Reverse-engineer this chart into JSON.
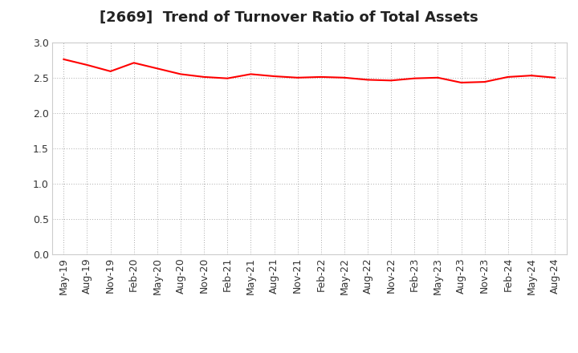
{
  "title": "[2669]  Trend of Turnover Ratio of Total Assets",
  "x_labels": [
    "May-19",
    "Aug-19",
    "Nov-19",
    "Feb-20",
    "May-20",
    "Aug-20",
    "Nov-20",
    "Feb-21",
    "May-21",
    "Aug-21",
    "Nov-21",
    "Feb-22",
    "May-22",
    "Aug-22",
    "Nov-22",
    "Feb-23",
    "May-23",
    "Aug-23",
    "Nov-23",
    "Feb-24",
    "May-24",
    "Aug-24"
  ],
  "values": [
    2.76,
    2.68,
    2.59,
    2.71,
    2.63,
    2.55,
    2.51,
    2.49,
    2.55,
    2.52,
    2.5,
    2.51,
    2.5,
    2.47,
    2.46,
    2.49,
    2.5,
    2.43,
    2.44,
    2.51,
    2.53,
    2.5
  ],
  "line_color": "#FF0000",
  "line_width": 1.5,
  "ylim": [
    0.0,
    3.0
  ],
  "yticks": [
    0.0,
    0.5,
    1.0,
    1.5,
    2.0,
    2.5,
    3.0
  ],
  "grid_color": "#aaaaaa",
  "bg_color": "#ffffff",
  "title_fontsize": 13,
  "tick_fontsize": 9,
  "title_color": "#222222"
}
